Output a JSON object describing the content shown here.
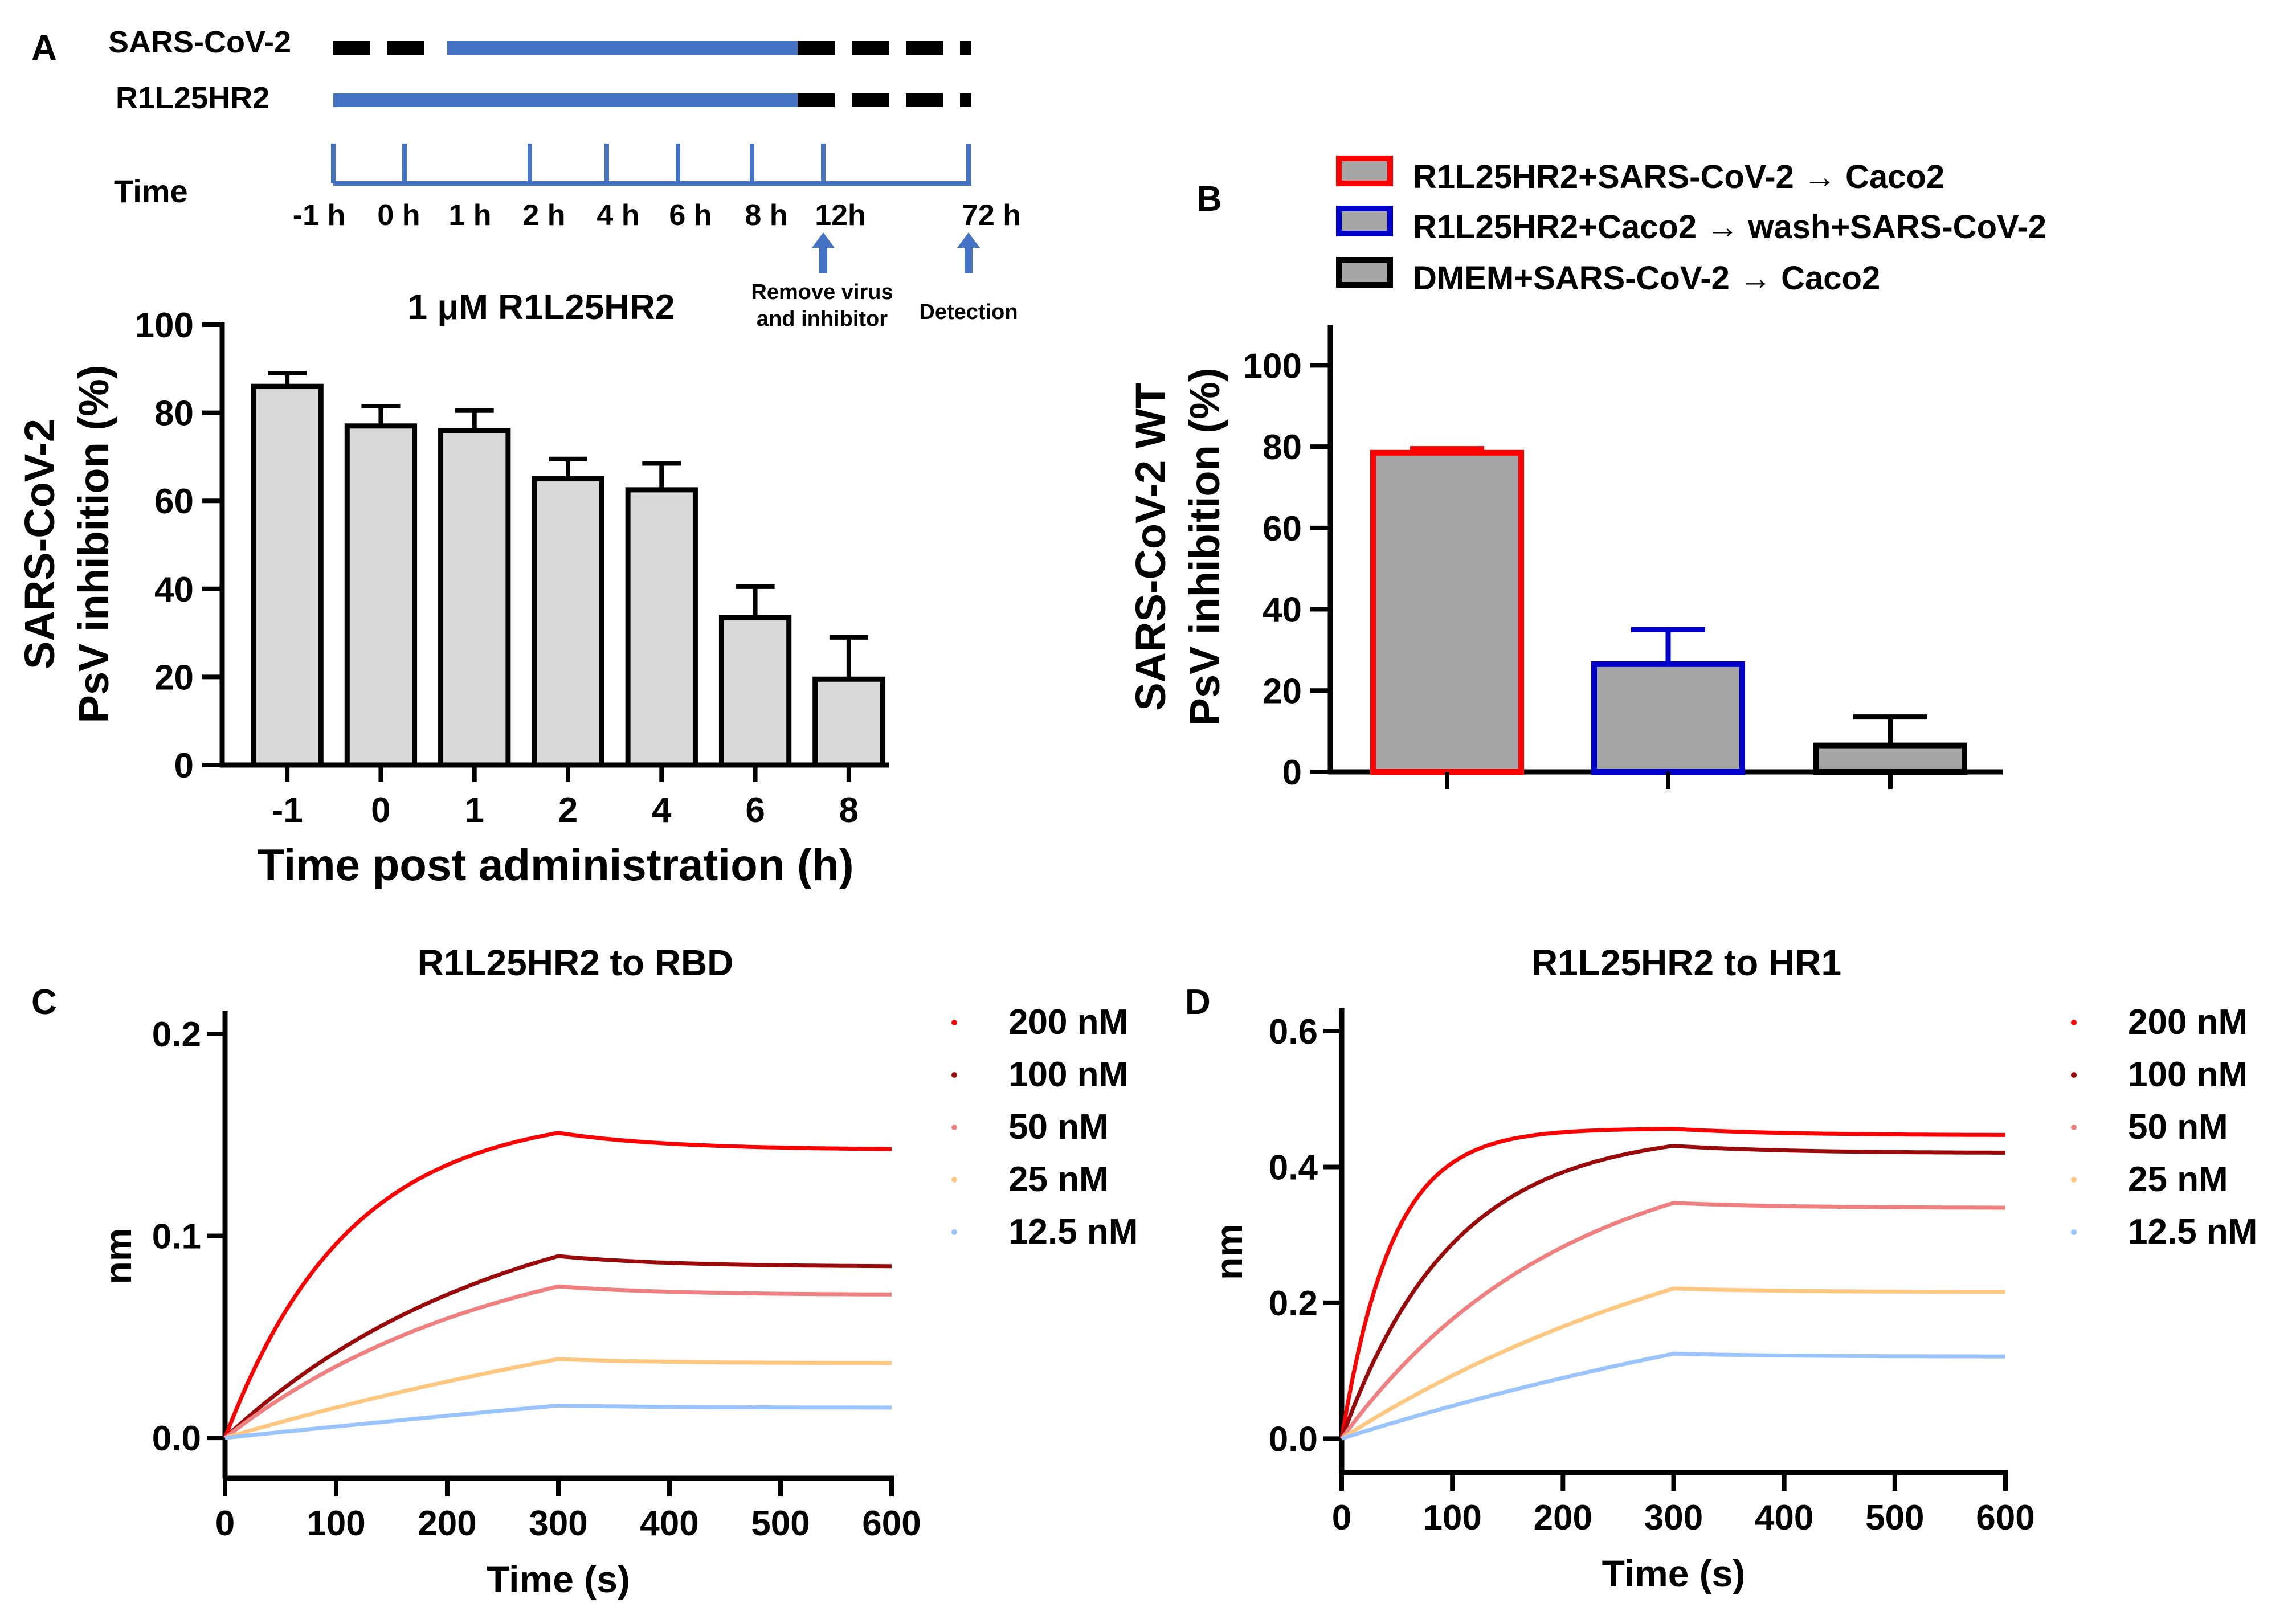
{
  "panels": {
    "A": "A",
    "B": "B",
    "C": "C",
    "D": "D"
  },
  "timeline": {
    "rows": [
      {
        "label": "SARS-CoV-2",
        "segments": [
          {
            "from": "-1 h",
            "to": "0 h",
            "style": "dashed-black"
          },
          {
            "from": "0.5 h",
            "to": "12h",
            "style": "solid-blue"
          },
          {
            "from": "12h",
            "to": "72 h",
            "style": "dashed-black"
          }
        ]
      },
      {
        "label": "R1L25HR2",
        "segments": [
          {
            "from": "-1 h",
            "to": "12h",
            "style": "solid-blue"
          },
          {
            "from": "12h",
            "to": "72 h",
            "style": "dashed-black"
          }
        ]
      }
    ],
    "axis_label": "Time",
    "ticks": [
      "-1 h",
      "0 h",
      "1 h",
      "2 h",
      "4 h",
      "6 h",
      "8 h",
      "12h",
      "72 h"
    ],
    "annotations": [
      {
        "at": "12h",
        "lines": [
          "Remove virus",
          "and inhibitor"
        ]
      },
      {
        "at": "72 h",
        "lines": [
          "Detection"
        ]
      }
    ]
  },
  "colors": {
    "bar_fill_a": "#d9d9d9",
    "bar_fill_b": "#a6a6a6",
    "red": "#ff0000",
    "blue": "#0000cc",
    "timeline_blue": "#4472c4",
    "conc_200": "#ff0000",
    "conc_100": "#9b0a0a",
    "conc_50": "#f08080",
    "conc_25": "#ffc77f",
    "conc_12_5": "#99c4ff"
  },
  "chart_data": [
    {
      "id": "A",
      "type": "bar",
      "title": "1 μM R1L25HR2",
      "xlabel": "Time post administration (h)",
      "ylabel_lines": [
        "SARS-CoV-2",
        "PsV inhibition (%)"
      ],
      "categories": [
        "-1",
        "0",
        "1",
        "2",
        "4",
        "6",
        "8"
      ],
      "values": [
        86,
        77,
        76,
        65,
        62.5,
        33.5,
        19.5
      ],
      "errors": [
        3,
        4.5,
        4.5,
        4.5,
        6,
        7,
        9.5
      ],
      "ylim": [
        0,
        100
      ],
      "yticks": [
        0,
        20,
        40,
        60,
        80,
        100
      ]
    },
    {
      "id": "B",
      "type": "bar",
      "title": "",
      "xlabel": "",
      "ylabel_lines": [
        "SARS-CoV-2 WT",
        "PsV inhibition (%)"
      ],
      "series": [
        {
          "name": "R1L25HR2+SARS-CoV-2 → Caco2",
          "value": 78.5,
          "error": 1,
          "edge": "#ff0000"
        },
        {
          "name": "R1L25HR2+Caco2 → wash+SARS-CoV-2",
          "value": 26.5,
          "error": 8.5,
          "edge": "#0000cc"
        },
        {
          "name": "DMEM+SARS-CoV-2 → Caco2",
          "value": 6.5,
          "error": 7,
          "edge": "#000000"
        }
      ],
      "ylim": [
        0,
        110
      ],
      "yticks": [
        0,
        20,
        40,
        60,
        80,
        100
      ]
    },
    {
      "id": "C",
      "type": "line",
      "title": "R1L25HR2 to RBD",
      "xlabel": "Time (s)",
      "ylabel": "nm",
      "xlim": [
        0,
        600
      ],
      "ylim": [
        -0.02,
        0.2
      ],
      "xticks": [
        0,
        100,
        200,
        300,
        400,
        500,
        600
      ],
      "yticks": [
        "0.0",
        "0.1",
        "0.2"
      ],
      "series": [
        {
          "name": "200 nM",
          "plateau": 0.151,
          "k": 0.009,
          "end": 0.143
        },
        {
          "name": "100 nM",
          "plateau": 0.09,
          "k": 0.004,
          "end": 0.085
        },
        {
          "name": "50 nM",
          "plateau": 0.075,
          "k": 0.004,
          "end": 0.071
        },
        {
          "name": "25 nM",
          "plateau": 0.039,
          "k": 0.0015,
          "end": 0.037
        },
        {
          "name": "12.5 nM",
          "plateau": 0.016,
          "k": 0.0005,
          "end": 0.015
        }
      ]
    },
    {
      "id": "D",
      "type": "line",
      "title": "R1L25HR2 to HR1",
      "xlabel": "Time (s)",
      "ylabel": "nm",
      "xlim": [
        0,
        600
      ],
      "ylim": [
        -0.05,
        0.6
      ],
      "xticks": [
        0,
        100,
        200,
        300,
        400,
        500,
        600
      ],
      "yticks": [
        "0.0",
        "0.2",
        "0.4",
        "0.6"
      ],
      "series": [
        {
          "name": "200 nM",
          "plateau": 0.456,
          "k": 0.022,
          "end": 0.447
        },
        {
          "name": "100 nM",
          "plateau": 0.431,
          "k": 0.01,
          "end": 0.421
        },
        {
          "name": "50 nM",
          "plateau": 0.347,
          "k": 0.005,
          "end": 0.34
        },
        {
          "name": "25 nM",
          "plateau": 0.221,
          "k": 0.0025,
          "end": 0.216
        },
        {
          "name": "12.5 nM",
          "plateau": 0.125,
          "k": 0.0015,
          "end": 0.121
        }
      ]
    }
  ]
}
